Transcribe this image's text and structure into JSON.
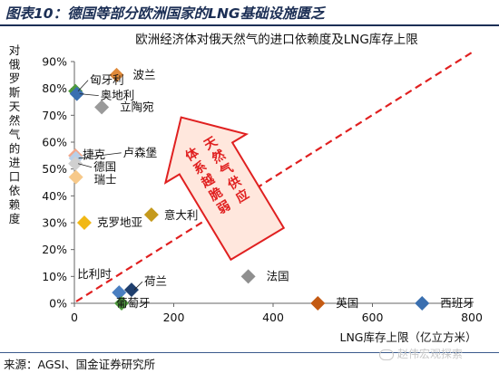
{
  "figure_title": "图表10：德国等部分欧洲国家的LNG基础设施匮乏",
  "source_note": "来源：AGSI、国金证券研究所",
  "watermark": "赵伟宏观探索",
  "chart_data": {
    "type": "scatter",
    "title": "欧洲经济体对俄天然气的进口依赖度及LNG库存上限",
    "xlabel": "LNG库存上限（亿立方米）",
    "ylabel": "对俄罗斯天然气的进口依赖度",
    "xlim": [
      0,
      800
    ],
    "ylim": [
      0,
      0.9
    ],
    "x_ticks": [
      0,
      200,
      400,
      600,
      800
    ],
    "x_tick_labels": [
      "0",
      "200",
      "400",
      "600",
      "800"
    ],
    "y_ticks": [
      0,
      0.1,
      0.2,
      0.3,
      0.4,
      0.5,
      0.6,
      0.7,
      0.8,
      0.9
    ],
    "y_tick_labels": [
      "0%",
      "10%",
      "20%",
      "30%",
      "40%",
      "50%",
      "60%",
      "70%",
      "80%",
      "90%"
    ],
    "grid": false,
    "annotation": "天然气供应体系越脆弱",
    "points": [
      {
        "label": "匈牙利",
        "x": 2,
        "y": 0.79,
        "color": "#4e9a3c"
      },
      {
        "label": "波兰",
        "x": 85,
        "y": 0.85,
        "color": "#e08a3a"
      },
      {
        "label": "奥地利",
        "x": 5,
        "y": 0.78,
        "color": "#3a6fb0"
      },
      {
        "label": "立陶宛",
        "x": 55,
        "y": 0.73,
        "color": "#9a9a9a"
      },
      {
        "label": "捷克",
        "x": 2,
        "y": 0.55,
        "color": "#f2a88c"
      },
      {
        "label": "卢森堡",
        "x": 3,
        "y": 0.54,
        "color": "#b8cfe8"
      },
      {
        "label": "德国",
        "x": 2,
        "y": 0.52,
        "color": "#d0d0d0"
      },
      {
        "label": "瑞士",
        "x": 3,
        "y": 0.47,
        "color": "#f7c98a"
      },
      {
        "label": "克罗地亚",
        "x": 20,
        "y": 0.3,
        "color": "#f1b815"
      },
      {
        "label": "意大利",
        "x": 155,
        "y": 0.33,
        "color": "#c59a1d"
      },
      {
        "label": "法国",
        "x": 350,
        "y": 0.1,
        "color": "#8f8f8f"
      },
      {
        "label": "比利时",
        "x": 90,
        "y": 0.04,
        "color": "#4a7fc1"
      },
      {
        "label": "荷兰",
        "x": 115,
        "y": 0.05,
        "color": "#1f3f6e"
      },
      {
        "label": "葡萄牙",
        "x": 95,
        "y": 0.0,
        "color": "#4e9a3c"
      },
      {
        "label": "英国",
        "x": 490,
        "y": 0.0,
        "color": "#c45a12"
      },
      {
        "label": "西班牙",
        "x": 700,
        "y": 0.0,
        "color": "#3a6fb0"
      }
    ]
  }
}
